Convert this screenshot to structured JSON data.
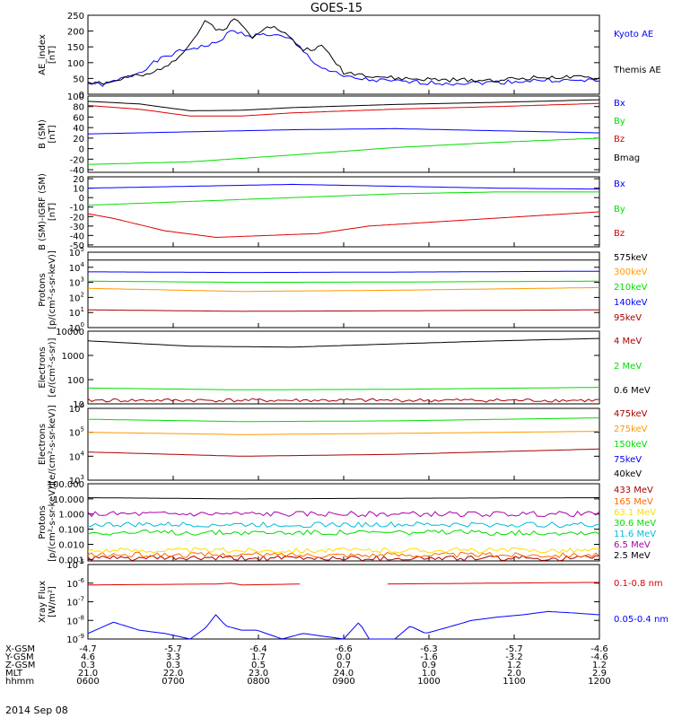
{
  "title": "GOES-15",
  "date_label": "2014 Sep 08",
  "ephemeris": {
    "rows": [
      {
        "label": "X-GSM",
        "values": [
          "-4.7",
          "-5.7",
          "-6.4",
          "-6.6",
          "-6.3",
          "-5.7",
          "-4.6"
        ]
      },
      {
        "label": "Y-GSM",
        "values": [
          "4.6",
          "3.3",
          "1.7",
          "0.0",
          "-1.6",
          "-3.2",
          "-4.6"
        ]
      },
      {
        "label": "Z-GSM",
        "values": [
          "0.3",
          "0.3",
          "0.5",
          "0.7",
          "0.9",
          "1.2",
          "1.2"
        ]
      },
      {
        "label": "MLT",
        "values": [
          "21.0",
          "22.0",
          "23.0",
          "24.0",
          "1.0",
          "2.0",
          "2.9"
        ]
      },
      {
        "label": "hhmm",
        "values": [
          "0600",
          "0700",
          "0800",
          "0900",
          "1000",
          "1100",
          "1200"
        ]
      }
    ]
  },
  "chart_data": [
    {
      "type": "line",
      "ylabel": "AE_index\n[nT]",
      "ylim": [
        0,
        250
      ],
      "yticks": [
        "0",
        "50",
        "100",
        "150",
        "200",
        "250"
      ],
      "x_range": [
        "0600",
        "1200"
      ],
      "series": [
        {
          "name": "Kyoto AE",
          "color": "#0000ff",
          "x": [
            0,
            0.03,
            0.06,
            0.1,
            0.14,
            0.17,
            0.2,
            0.22,
            0.25,
            0.28,
            0.32,
            0.36,
            0.4,
            0.45,
            0.5,
            0.55,
            0.6,
            0.7,
            0.8,
            0.9,
            0.97,
            1
          ],
          "y": [
            35,
            30,
            45,
            70,
            110,
            130,
            145,
            150,
            160,
            200,
            185,
            190,
            170,
            90,
            55,
            45,
            40,
            35,
            38,
            45,
            42,
            45
          ]
        },
        {
          "name": "Themis AE",
          "color": "#000000",
          "x": [
            0,
            0.04,
            0.08,
            0.12,
            0.17,
            0.2,
            0.23,
            0.26,
            0.29,
            0.32,
            0.35,
            0.38,
            0.42,
            0.46,
            0.5,
            0.55,
            0.6,
            0.7,
            0.8,
            0.9,
            1
          ],
          "y": [
            40,
            35,
            55,
            60,
            110,
            160,
            230,
            200,
            240,
            180,
            220,
            200,
            140,
            150,
            70,
            60,
            50,
            45,
            45,
            55,
            50
          ]
        }
      ]
    },
    {
      "type": "line",
      "ylabel": "B (SM)\n[nT]",
      "ylim": [
        -45,
        100
      ],
      "yticks": [
        "-40",
        "-20",
        "0",
        "20",
        "40",
        "60",
        "80",
        "100"
      ],
      "series": [
        {
          "name": "Bx",
          "color": "#0000ff",
          "x": [
            0,
            0.2,
            0.4,
            0.6,
            0.8,
            1
          ],
          "y": [
            28,
            32,
            36,
            38,
            34,
            30
          ]
        },
        {
          "name": "By",
          "color": "#00dd00",
          "x": [
            0,
            0.2,
            0.4,
            0.6,
            0.8,
            1
          ],
          "y": [
            -30,
            -25,
            -12,
            2,
            12,
            20
          ]
        },
        {
          "name": "Bz",
          "color": "#dd0000",
          "x": [
            0,
            0.1,
            0.2,
            0.3,
            0.4,
            0.6,
            0.8,
            1
          ],
          "y": [
            82,
            75,
            62,
            62,
            68,
            75,
            80,
            86
          ]
        },
        {
          "name": "Bmag",
          "color": "#000000",
          "x": [
            0,
            0.1,
            0.2,
            0.3,
            0.4,
            0.6,
            0.8,
            1
          ],
          "y": [
            90,
            85,
            72,
            73,
            78,
            84,
            88,
            93
          ]
        }
      ]
    },
    {
      "type": "line",
      "ylabel": "B (SM)-IGRF (SM)\n[nT]",
      "ylim": [
        -52,
        22
      ],
      "yticks": [
        "-50",
        "-40",
        "-30",
        "-20",
        "-10",
        "0",
        "10",
        "20"
      ],
      "series": [
        {
          "name": "Bx",
          "color": "#0000ff",
          "x": [
            0,
            0.2,
            0.4,
            0.6,
            0.8,
            1
          ],
          "y": [
            10,
            12,
            14,
            12,
            10,
            9
          ]
        },
        {
          "name": "By",
          "color": "#00dd00",
          "x": [
            0,
            0.2,
            0.4,
            0.6,
            0.8,
            1
          ],
          "y": [
            -8,
            -4,
            0,
            4,
            6,
            6
          ]
        },
        {
          "name": "Bz",
          "color": "#dd0000",
          "x": [
            0,
            0.05,
            0.15,
            0.25,
            0.35,
            0.45,
            0.55,
            0.7,
            0.85,
            1
          ],
          "y": [
            -17,
            -22,
            -35,
            -42,
            -40,
            -38,
            -30,
            -25,
            -20,
            -15
          ]
        }
      ]
    },
    {
      "type": "line",
      "ylabel": "Protons\n[p/(cm²-s-sr-keV)]",
      "yscale": "log",
      "ylim": [
        1,
        100000
      ],
      "yticks": [
        "10^0",
        "10^1",
        "10^2",
        "10^3",
        "10^4",
        "10^5"
      ],
      "series": [
        {
          "name": "575keV",
          "color": "#000000",
          "x": [
            0,
            1
          ],
          "y": [
            30000,
            30000
          ]
        },
        {
          "name": "300keV",
          "color": "#ff9900",
          "x": [
            0,
            0.3,
            0.6,
            1
          ],
          "y": [
            400,
            250,
            300,
            450
          ]
        },
        {
          "name": "210keV",
          "color": "#00dd00",
          "x": [
            0,
            0.3,
            0.6,
            1
          ],
          "y": [
            1200,
            1000,
            1050,
            1200
          ]
        },
        {
          "name": "140keV",
          "color": "#0000ff",
          "x": [
            0,
            0.3,
            0.6,
            1
          ],
          "y": [
            5000,
            4500,
            4800,
            5500
          ]
        },
        {
          "name": "95keV",
          "color": "#aa0000",
          "x": [
            0,
            0.3,
            0.6,
            1
          ],
          "y": [
            15,
            12,
            13,
            15
          ]
        }
      ]
    },
    {
      "type": "line",
      "ylabel": "Electrons\n[e/(cm²-s-sr)]",
      "yscale": "log",
      "ylim": [
        10,
        10000
      ],
      "yticks": [
        "10",
        "100",
        "1000",
        "10000"
      ],
      "series": [
        {
          "name": "4 MeV",
          "color": "#aa0000",
          "x": [
            0,
            1
          ],
          "y": [
            14,
            14
          ]
        },
        {
          "name": "2 MeV",
          "color": "#00dd00",
          "x": [
            0,
            0.3,
            0.6,
            1
          ],
          "y": [
            45,
            38,
            40,
            48
          ]
        },
        {
          "name": "0.6 MeV",
          "color": "#000000",
          "x": [
            0,
            0.2,
            0.4,
            0.6,
            0.8,
            1
          ],
          "y": [
            4000,
            2400,
            2200,
            3000,
            4000,
            5000
          ]
        }
      ]
    },
    {
      "type": "line",
      "ylabel": "Electrons\n[e/(cm²-s-sr-keV)]",
      "yscale": "log",
      "ylim": [
        1000,
        1000000
      ],
      "yticks": [
        "10^3",
        "10^4",
        "10^5",
        "10^6"
      ],
      "series": [
        {
          "name": "475keV",
          "color": "#aa0000",
          "x": [
            0,
            0.3,
            0.6,
            1
          ],
          "y": [
            15000,
            10000,
            12000,
            20000
          ]
        },
        {
          "name": "275keV",
          "color": "#ff9900",
          "x": [
            0,
            0.3,
            0.6,
            1
          ],
          "y": [
            100000,
            80000,
            90000,
            110000
          ]
        },
        {
          "name": "150keV",
          "color": "#00dd00",
          "x": [
            0,
            0.3,
            0.6,
            1
          ],
          "y": [
            350000,
            280000,
            300000,
            400000
          ]
        },
        {
          "name": "75keV",
          "color": "#0000ff"
        },
        {
          "name": "40keV",
          "color": "#000000"
        }
      ]
    },
    {
      "type": "line",
      "ylabel": "Protons\n[p/(cm²-s-sr-keV)]",
      "yscale": "log",
      "ylim": [
        0.0008,
        100
      ],
      "yticks": [
        "0.001",
        "0.010",
        "0.100",
        "1.000",
        "10.000",
        "100.000"
      ],
      "series": [
        {
          "name": "433 MeV",
          "color": "#aa0000",
          "x": [
            0,
            1
          ],
          "y": [
            0.0012,
            0.0012
          ]
        },
        {
          "name": "165 MeV",
          "color": "#ff6600",
          "x": [
            0,
            1
          ],
          "y": [
            0.002,
            0.002
          ]
        },
        {
          "name": "63.1 MeV",
          "color": "#ffdd00",
          "x": [
            0,
            1
          ],
          "y": [
            0.004,
            0.004
          ]
        },
        {
          "name": "30.6 MeV",
          "color": "#00dd00",
          "x": [
            0,
            1
          ],
          "y": [
            0.06,
            0.06
          ]
        },
        {
          "name": "11.6 MeV",
          "color": "#00bbdd",
          "x": [
            0,
            1
          ],
          "y": [
            0.2,
            0.2
          ]
        },
        {
          "name": "6.5 MeV",
          "color": "#aa00aa",
          "x": [
            0,
            1
          ],
          "y": [
            1.0,
            1.0
          ]
        },
        {
          "name": "2.5 MeV",
          "color": "#000000",
          "x": [
            0,
            0.3,
            0.6,
            1
          ],
          "y": [
            12,
            10,
            11,
            12
          ]
        }
      ]
    },
    {
      "type": "line",
      "ylabel": "Xray Flux\n[W/m²]",
      "yscale": "log",
      "ylim": [
        1e-09,
        1e-05
      ],
      "yticks": [
        "10^-9",
        "10^-8",
        "10^-7",
        "10^-6",
        "10^-5"
      ],
      "series": [
        {
          "name": "0.1-0.8 nm",
          "color": "#dd0000",
          "x": [
            0,
            0.25,
            0.28,
            0.3,
            0.42,
            0.55,
            0.58,
            1
          ],
          "y": [
            8e-07,
            9e-07,
            1e-06,
            8e-07,
            9e-07,
            null,
            9e-07,
            1.1e-06
          ]
        },
        {
          "name": "0.05-0.4 nm",
          "color": "#0000ff",
          "x": [
            0,
            0.05,
            0.1,
            0.15,
            0.2,
            0.23,
            0.25,
            0.27,
            0.3,
            0.33,
            0.38,
            0.42,
            0.5,
            0.53,
            0.55,
            0.6,
            0.63,
            0.66,
            0.7,
            0.75,
            0.8,
            0.85,
            0.9,
            0.95,
            1
          ],
          "y": [
            2e-09,
            8e-09,
            3e-09,
            2e-09,
            1e-09,
            4e-09,
            2e-08,
            5e-09,
            3e-09,
            3e-09,
            1e-09,
            2e-09,
            1e-09,
            8e-09,
            1e-09,
            1e-09,
            5e-09,
            2e-09,
            4e-09,
            1e-08,
            1.5e-08,
            2e-08,
            3e-08,
            2.5e-08,
            2e-08
          ]
        }
      ]
    }
  ]
}
